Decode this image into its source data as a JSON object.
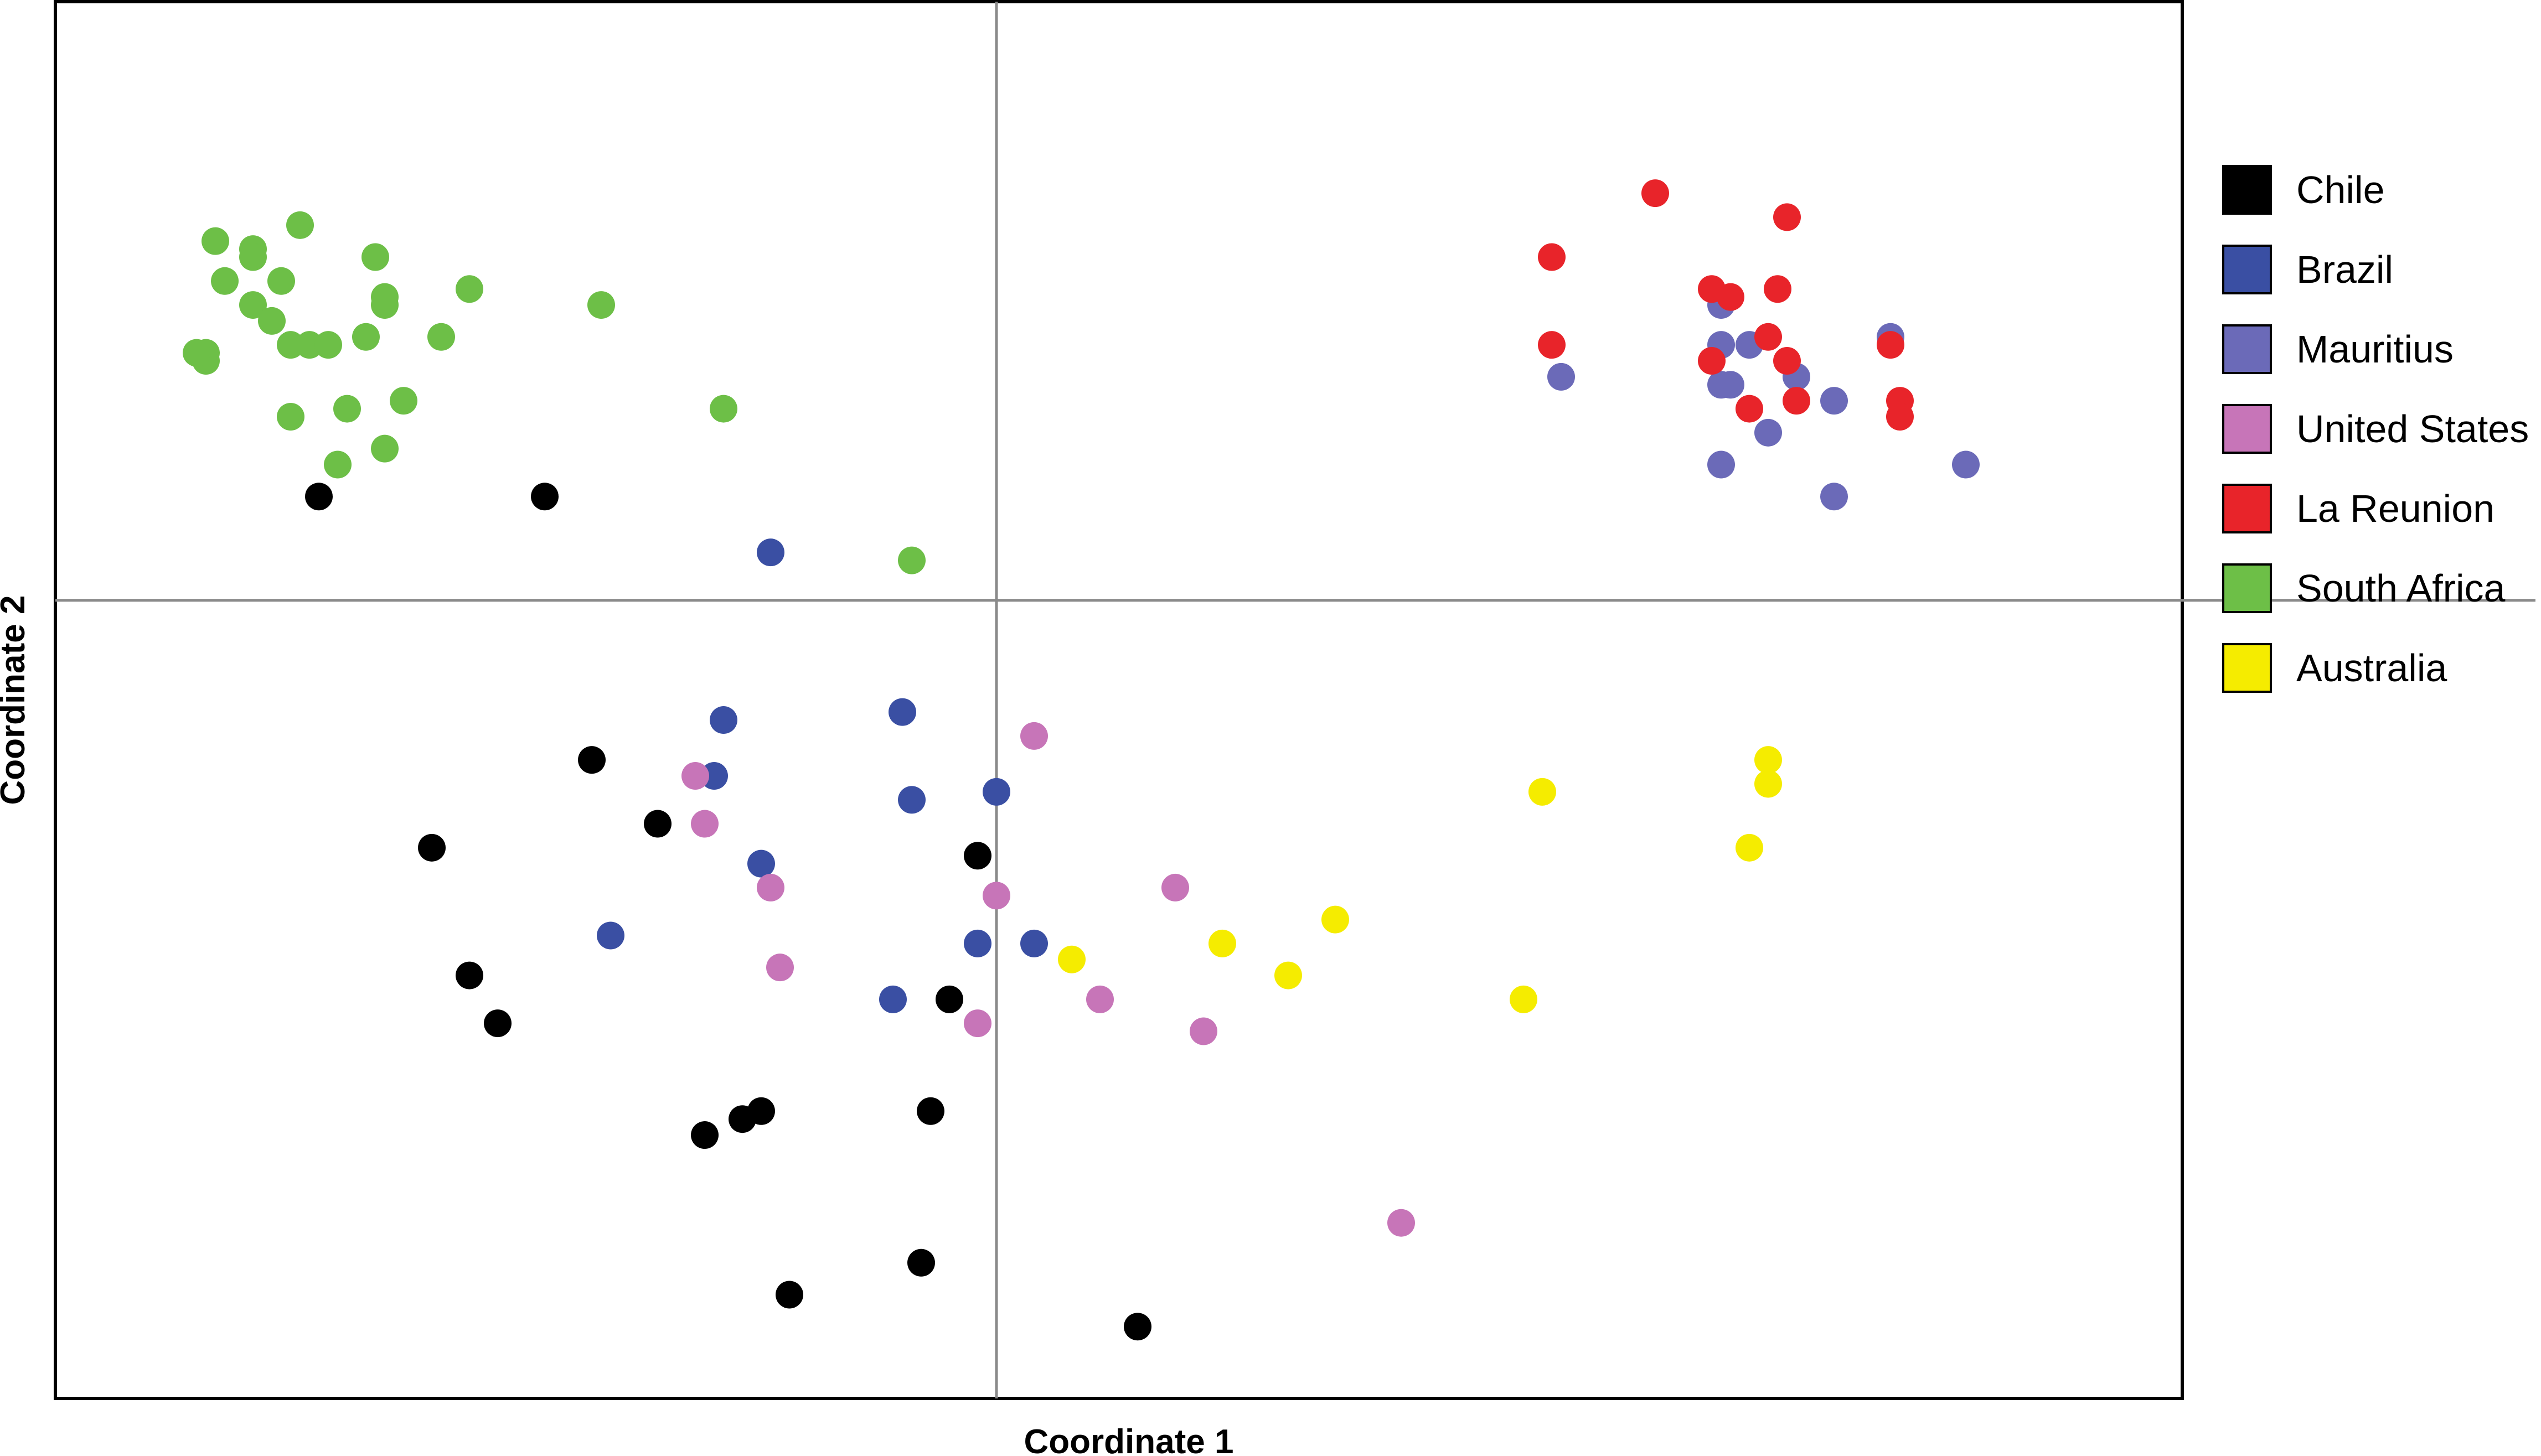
{
  "chart_data": {
    "type": "scatter",
    "title": "",
    "xlabel": "Coordinate 1",
    "ylabel": "Coordinate 2",
    "xlim": [
      -1,
      1.26
    ],
    "ylim": [
      -1,
      0.75
    ],
    "origin_lines": true,
    "grid": false,
    "legend_placement": "right",
    "series": [
      {
        "name": "Chile",
        "color": "#000000",
        "points": [
          [
            -0.72,
            0.13
          ],
          [
            -0.48,
            0.13
          ],
          [
            -0.43,
            -0.2
          ],
          [
            -0.36,
            -0.28
          ],
          [
            -0.6,
            -0.31
          ],
          [
            -0.56,
            -0.47
          ],
          [
            -0.53,
            -0.53
          ],
          [
            -0.31,
            -0.67
          ],
          [
            -0.27,
            -0.65
          ],
          [
            -0.25,
            -0.64
          ],
          [
            -0.02,
            -0.32
          ],
          [
            -0.05,
            -0.5
          ],
          [
            -0.07,
            -0.64
          ],
          [
            -0.08,
            -0.83
          ],
          [
            -0.22,
            -0.87
          ],
          [
            0.15,
            -0.91
          ]
        ]
      },
      {
        "name": "Brazil",
        "color": "#3a4fa3",
        "points": [
          [
            -0.24,
            0.06
          ],
          [
            -0.29,
            -0.15
          ],
          [
            -0.1,
            -0.14
          ],
          [
            -0.3,
            -0.22
          ],
          [
            -0.09,
            -0.25
          ],
          [
            0,
            -0.24
          ],
          [
            -0.25,
            -0.33
          ],
          [
            -0.41,
            -0.42
          ],
          [
            -0.02,
            -0.43
          ],
          [
            0.04,
            -0.43
          ],
          [
            -0.11,
            -0.5
          ]
        ]
      },
      {
        "name": "Mauritius",
        "color": "#6b6ab8",
        "points": [
          [
            0.6,
            0.28
          ],
          [
            0.77,
            0.37
          ],
          [
            0.77,
            0.32
          ],
          [
            0.8,
            0.32
          ],
          [
            0.85,
            0.28
          ],
          [
            0.77,
            0.27
          ],
          [
            0.78,
            0.27
          ],
          [
            0.82,
            0.21
          ],
          [
            0.89,
            0.25
          ],
          [
            0.77,
            0.17
          ],
          [
            0.95,
            0.33
          ],
          [
            0.89,
            0.13
          ],
          [
            1.03,
            0.17
          ]
        ]
      },
      {
        "name": "United States",
        "color": "#c775b8",
        "points": [
          [
            0.04,
            -0.17
          ],
          [
            -0.32,
            -0.22
          ],
          [
            -0.31,
            -0.28
          ],
          [
            -0.24,
            -0.36
          ],
          [
            0,
            -0.37
          ],
          [
            0.19,
            -0.36
          ],
          [
            -0.23,
            -0.46
          ],
          [
            0.11,
            -0.5
          ],
          [
            -0.02,
            -0.53
          ],
          [
            0.22,
            -0.54
          ],
          [
            0.43,
            -0.78
          ]
        ]
      },
      {
        "name": "La Reunion",
        "color": "#e8242a",
        "points": [
          [
            0.7,
            0.51
          ],
          [
            0.84,
            0.48
          ],
          [
            0.59,
            0.43
          ],
          [
            0.76,
            0.39
          ],
          [
            0.78,
            0.38
          ],
          [
            0.83,
            0.39
          ],
          [
            0.82,
            0.33
          ],
          [
            0.59,
            0.32
          ],
          [
            0.95,
            0.32
          ],
          [
            0.76,
            0.3
          ],
          [
            0.84,
            0.3
          ],
          [
            0.8,
            0.24
          ],
          [
            0.85,
            0.25
          ],
          [
            0.96,
            0.25
          ],
          [
            0.96,
            0.23
          ]
        ]
      },
      {
        "name": "South Africa",
        "color": "#6dbf47",
        "points": [
          [
            -0.74,
            0.47
          ],
          [
            -0.83,
            0.45
          ],
          [
            -0.79,
            0.44
          ],
          [
            -0.79,
            0.43
          ],
          [
            -0.82,
            0.4
          ],
          [
            -0.76,
            0.4
          ],
          [
            -0.66,
            0.43
          ],
          [
            -0.56,
            0.39
          ],
          [
            -0.42,
            0.37
          ],
          [
            -0.79,
            0.37
          ],
          [
            -0.65,
            0.37
          ],
          [
            -0.65,
            0.38
          ],
          [
            -0.77,
            0.35
          ],
          [
            -0.75,
            0.32
          ],
          [
            -0.73,
            0.32
          ],
          [
            -0.71,
            0.32
          ],
          [
            -0.67,
            0.33
          ],
          [
            -0.59,
            0.33
          ],
          [
            -0.84,
            0.31
          ],
          [
            -0.84,
            0.3
          ],
          [
            -0.85,
            0.31
          ],
          [
            -0.69,
            0.24
          ],
          [
            -0.63,
            0.25
          ],
          [
            -0.75,
            0.23
          ],
          [
            -0.29,
            0.24
          ],
          [
            -0.7,
            0.17
          ],
          [
            -0.65,
            0.19
          ],
          [
            -0.09,
            0.05
          ]
        ]
      },
      {
        "name": "Australia",
        "color": "#f5ec00",
        "points": [
          [
            0.82,
            -0.2
          ],
          [
            0.82,
            -0.23
          ],
          [
            0.58,
            -0.24
          ],
          [
            0.8,
            -0.31
          ],
          [
            0.36,
            -0.4
          ],
          [
            0.24,
            -0.43
          ],
          [
            0.08,
            -0.45
          ],
          [
            0.31,
            -0.47
          ],
          [
            0.56,
            -0.5
          ]
        ]
      }
    ]
  }
}
